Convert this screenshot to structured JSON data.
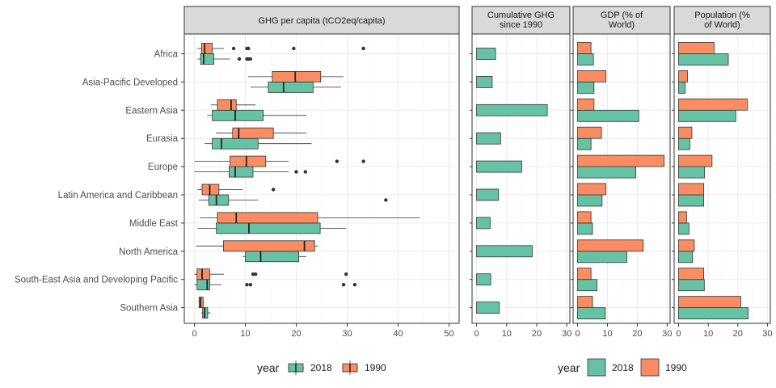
{
  "colors": {
    "y2018": "#66c2a5",
    "y1990": "#fc8d62",
    "strip_bg": "#d9d9d9",
    "grid": "#ebebeb",
    "outline": "#333333"
  },
  "chart_data": [
    {
      "type": "boxplot",
      "id": "ghg",
      "title": "GHG per capita (tCO2eq/capita)",
      "xlim": [
        -2,
        52
      ],
      "xticks": [
        0,
        10,
        20,
        30,
        40,
        50
      ],
      "categories": [
        "Africa",
        "Asia-Pacific Developed",
        "Eastern Asia",
        "Eurasia",
        "Europe",
        "Latin America and Caribbean",
        "Middle East",
        "North America",
        "South-East Asia and Developing Pacific",
        "Southern Asia"
      ],
      "series": [
        {
          "name": "2018",
          "boxes": [
            {
              "low": 0.6,
              "q1": 1.2,
              "median": 1.8,
              "q3": 3.8,
              "high": 7.0,
              "outliers": [
                8.8,
                10.3,
                10.6,
                11.0
              ]
            },
            {
              "low": 11.0,
              "q1": 14.5,
              "median": 17.5,
              "q3": 23.3,
              "high": 28.8,
              "outliers": []
            },
            {
              "low": 2.5,
              "q1": 3.5,
              "median": 8.0,
              "q3": 13.5,
              "high": 22.0,
              "outliers": []
            },
            {
              "low": 2.0,
              "q1": 3.5,
              "median": 5.3,
              "q3": 12.5,
              "high": 23.0,
              "outliers": []
            },
            {
              "low": 0.0,
              "q1": 6.8,
              "median": 8.0,
              "q3": 11.5,
              "high": 18.5,
              "outliers": [
                20.0,
                21.8
              ]
            },
            {
              "low": 0.8,
              "q1": 2.8,
              "median": 4.3,
              "q3": 6.7,
              "high": 12.5,
              "outliers": [
                37.6
              ]
            },
            {
              "low": 0.6,
              "q1": 4.3,
              "median": 10.7,
              "q3": 24.7,
              "high": 29.8,
              "outliers": []
            },
            {
              "low": 9.5,
              "q1": 10.0,
              "median": 13.0,
              "q3": 20.5,
              "high": 22.0,
              "outliers": []
            },
            {
              "low": 0.0,
              "q1": 0.5,
              "median": 2.5,
              "q3": 3.0,
              "high": 5.3,
              "outliers": [
                10.3,
                11.0,
                29.3,
                31.5
              ]
            },
            {
              "low": 1.3,
              "q1": 1.6,
              "median": 2.0,
              "q3": 2.6,
              "high": 3.2,
              "outliers": []
            }
          ]
        },
        {
          "name": "1990",
          "boxes": [
            {
              "low": 0.6,
              "q1": 1.4,
              "median": 2.0,
              "q3": 3.5,
              "high": 5.8,
              "outliers": [
                7.7,
                10.3,
                10.6,
                19.5,
                33.2
              ]
            },
            {
              "low": 10.5,
              "q1": 15.3,
              "median": 19.8,
              "q3": 24.8,
              "high": 29.3,
              "outliers": []
            },
            {
              "low": 3.2,
              "q1": 4.5,
              "median": 7.2,
              "q3": 8.2,
              "high": 12.0,
              "outliers": []
            },
            {
              "low": 4.2,
              "q1": 7.5,
              "median": 8.7,
              "q3": 15.5,
              "high": 22.0,
              "outliers": []
            },
            {
              "low": 0.0,
              "q1": 7.0,
              "median": 10.2,
              "q3": 14.0,
              "high": 18.5,
              "outliers": [
                28.0,
                33.2
              ]
            },
            {
              "low": 0.6,
              "q1": 1.5,
              "median": 3.0,
              "q3": 4.8,
              "high": 9.5,
              "outliers": [
                15.5
              ]
            },
            {
              "low": 1.0,
              "q1": 4.5,
              "median": 8.2,
              "q3": 24.2,
              "high": 44.3,
              "outliers": []
            },
            {
              "low": 0.3,
              "q1": 5.7,
              "median": 21.6,
              "q3": 23.6,
              "high": 24.3,
              "outliers": []
            },
            {
              "low": 0.0,
              "q1": 0.5,
              "median": 1.5,
              "q3": 3.0,
              "high": 5.8,
              "outliers": [
                11.5,
                12.0,
                29.8
              ]
            },
            {
              "low": 0.8,
              "q1": 0.9,
              "median": 1.2,
              "q3": 1.7,
              "high": 1.9,
              "outliers": []
            }
          ]
        }
      ]
    },
    {
      "type": "bar",
      "id": "cum",
      "title": [
        "Cumulative GHG",
        "since 1990"
      ],
      "xlim": [
        -1.5,
        31
      ],
      "xticks": [
        0,
        10,
        20,
        30
      ],
      "series": [
        {
          "name": "2018",
          "values": [
            6.3,
            5.2,
            23.5,
            8.0,
            15.0,
            7.3,
            4.5,
            18.5,
            4.7,
            7.5
          ]
        }
      ]
    },
    {
      "type": "bar",
      "id": "gdp",
      "title": [
        "GDP (% of",
        "World)"
      ],
      "xlim": [
        -1.5,
        31
      ],
      "xticks": [
        0,
        10,
        20,
        30
      ],
      "series": [
        {
          "name": "2018",
          "values": [
            5.3,
            5.5,
            20.5,
            4.5,
            19.5,
            8.2,
            5.0,
            16.5,
            6.5,
            9.3
          ]
        },
        {
          "name": "1990",
          "values": [
            4.5,
            9.5,
            5.5,
            8.0,
            29.0,
            9.5,
            4.5,
            22.0,
            4.5,
            5.0
          ]
        }
      ]
    },
    {
      "type": "bar",
      "id": "pop",
      "title": [
        "Population (%",
        "of World)"
      ],
      "xlim": [
        -1.5,
        31
      ],
      "xticks": [
        0,
        10,
        20,
        30
      ],
      "series": [
        {
          "name": "2018",
          "values": [
            16.8,
            2.2,
            19.3,
            3.8,
            8.8,
            8.5,
            3.5,
            4.7,
            8.7,
            23.5
          ]
        },
        {
          "name": "1990",
          "values": [
            12.0,
            3.0,
            23.2,
            4.5,
            11.3,
            8.5,
            2.7,
            5.3,
            8.5,
            21.0
          ]
        }
      ]
    }
  ],
  "legends": [
    {
      "title": "year",
      "kind": "box",
      "entries": [
        {
          "label": "2018",
          "color": "#66c2a5"
        },
        {
          "label": "1990",
          "color": "#fc8d62"
        }
      ]
    },
    {
      "title": "year",
      "kind": "fill",
      "entries": [
        {
          "label": "2018",
          "color": "#66c2a5"
        },
        {
          "label": "1990",
          "color": "#fc8d62"
        }
      ]
    }
  ]
}
